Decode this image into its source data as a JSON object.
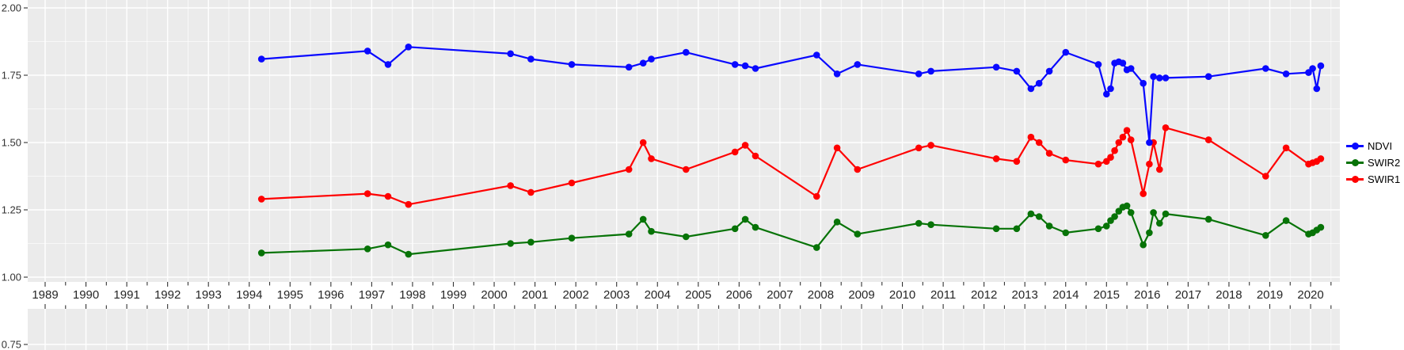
{
  "chart_data": {
    "type": "line",
    "title": "",
    "xlabel": "",
    "ylabel": "",
    "panel_bg": "#ebebeb",
    "grid": {
      "major_color": "#ffffff",
      "minor_color": "#ffffff",
      "on": true
    },
    "x_axis": {
      "ticks": [
        1989,
        1990,
        1991,
        1992,
        1993,
        1994,
        1995,
        1996,
        1997,
        1998,
        1999,
        2000,
        2001,
        2002,
        2003,
        2004,
        2005,
        2006,
        2007,
        2008,
        2009,
        2010,
        2011,
        2012,
        2013,
        2014,
        2015,
        2016,
        2017,
        2018,
        2019,
        2020
      ],
      "range": [
        1988.6,
        2020.7
      ]
    },
    "y_axis": {
      "major_ticks": [
        {
          "value": 2.0,
          "label": "2.00"
        },
        {
          "value": 1.75,
          "label": "1.75"
        },
        {
          "value": 1.5,
          "label": "1.50"
        },
        {
          "value": 1.25,
          "label": "1.25"
        },
        {
          "value": 1.0,
          "label": "1.00"
        }
      ],
      "minor_ticks": [
        1.875,
        1.625,
        1.375,
        1.125
      ],
      "bottom_panel_tick": {
        "value": 0.75,
        "label": "0.75"
      },
      "range": [
        0.75,
        2.0
      ]
    },
    "x": [
      1994.3,
      1996.9,
      1997.4,
      1997.9,
      2000.4,
      2000.9,
      2001.9,
      2003.3,
      2003.65,
      2003.85,
      2004.7,
      2005.9,
      2006.15,
      2006.4,
      2007.9,
      2008.4,
      2008.9,
      2010.4,
      2010.7,
      2012.3,
      2012.8,
      2013.15,
      2013.35,
      2013.6,
      2014.0,
      2014.8,
      2015.0,
      2015.1,
      2015.2,
      2015.3,
      2015.4,
      2015.5,
      2015.6,
      2015.9,
      2016.05,
      2016.15,
      2016.3,
      2016.45,
      2017.5,
      2018.9,
      2019.4,
      2019.95,
      2020.05,
      2020.15,
      2020.25
    ],
    "series": [
      {
        "name": "NDVI",
        "color": "#0909ff",
        "values": [
          1.81,
          1.84,
          1.79,
          1.855,
          1.83,
          1.81,
          1.79,
          1.78,
          1.795,
          1.81,
          1.835,
          1.79,
          1.785,
          1.775,
          1.825,
          1.755,
          1.79,
          1.755,
          1.765,
          1.78,
          1.765,
          1.7,
          1.72,
          1.765,
          1.835,
          1.79,
          1.68,
          1.7,
          1.795,
          1.8,
          1.795,
          1.77,
          1.775,
          1.72,
          1.5,
          1.745,
          1.74,
          1.74,
          1.745,
          1.775,
          1.755,
          1.76,
          1.775,
          1.7,
          1.785
        ]
      },
      {
        "name": "SWIR2",
        "color": "#077307",
        "values": [
          1.09,
          1.105,
          1.12,
          1.085,
          1.125,
          1.13,
          1.145,
          1.16,
          1.215,
          1.17,
          1.15,
          1.18,
          1.215,
          1.185,
          1.11,
          1.205,
          1.16,
          1.2,
          1.195,
          1.18,
          1.18,
          1.235,
          1.225,
          1.19,
          1.165,
          1.18,
          1.19,
          1.21,
          1.225,
          1.245,
          1.26,
          1.265,
          1.24,
          1.12,
          1.165,
          1.24,
          1.2,
          1.235,
          1.215,
          1.155,
          1.21,
          1.16,
          1.165,
          1.175,
          1.185
        ]
      },
      {
        "name": "SWIR1",
        "color": "#ff0000",
        "values": [
          1.29,
          1.31,
          1.3,
          1.27,
          1.34,
          1.315,
          1.35,
          1.4,
          1.5,
          1.44,
          1.4,
          1.465,
          1.49,
          1.45,
          1.3,
          1.48,
          1.4,
          1.48,
          1.49,
          1.44,
          1.43,
          1.52,
          1.5,
          1.46,
          1.435,
          1.42,
          1.43,
          1.445,
          1.47,
          1.5,
          1.52,
          1.545,
          1.51,
          1.31,
          1.42,
          1.5,
          1.4,
          1.555,
          1.51,
          1.375,
          1.48,
          1.42,
          1.425,
          1.43,
          1.44
        ]
      }
    ],
    "legend": {
      "position": "right",
      "entries": [
        "NDVI",
        "SWIR2",
        "SWIR1"
      ]
    }
  }
}
